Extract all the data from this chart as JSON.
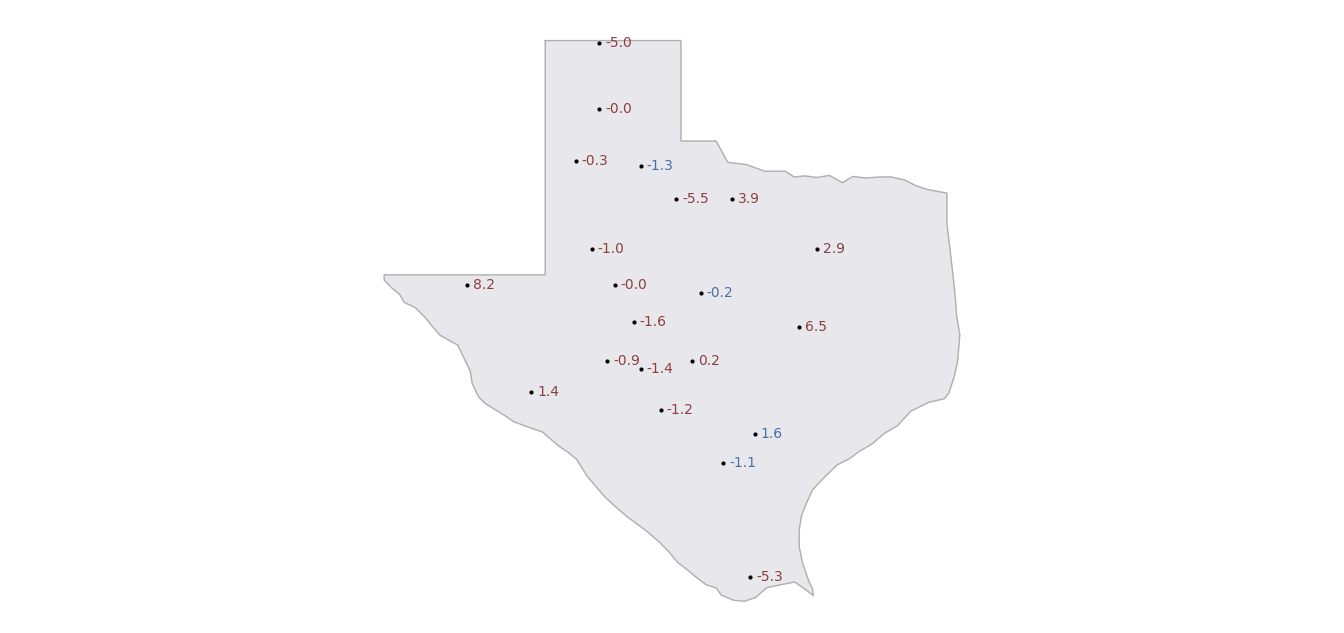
{
  "background_color": "#ffffff",
  "map_fill_color": "#e8e8ec",
  "map_edge_color": "#b0b0b0",
  "map_edge_width": 1.0,
  "label_fontsize": 10,
  "dot_size": 4,
  "points": [
    {
      "lon": -101.83,
      "lat": 36.45,
      "value": -5.0,
      "color": "#8b4040"
    },
    {
      "lon": -101.83,
      "lat": 35.18,
      "value": -0.0,
      "color": "#8b4040"
    },
    {
      "lon": -102.35,
      "lat": 34.18,
      "value": -0.3,
      "color": "#8b4040"
    },
    {
      "lon": -100.9,
      "lat": 34.1,
      "value": -1.3,
      "color": "#4a6fa5"
    },
    {
      "lon": -100.1,
      "lat": 33.45,
      "value": -5.5,
      "color": "#8b4040"
    },
    {
      "lon": -98.85,
      "lat": 33.45,
      "value": 3.9,
      "color": "#8b4040"
    },
    {
      "lon": -102.0,
      "lat": 32.5,
      "value": -1.0,
      "color": "#8b4040"
    },
    {
      "lon": -96.95,
      "lat": 32.5,
      "value": 2.9,
      "color": "#8b4040"
    },
    {
      "lon": -104.8,
      "lat": 31.8,
      "value": 8.2,
      "color": "#8b4040"
    },
    {
      "lon": -101.48,
      "lat": 31.8,
      "value": -0.0,
      "color": "#8b4040"
    },
    {
      "lon": -99.55,
      "lat": 31.65,
      "value": -0.2,
      "color": "#4a6fa5"
    },
    {
      "lon": -101.05,
      "lat": 31.1,
      "value": -1.6,
      "color": "#8b4040"
    },
    {
      "lon": -97.35,
      "lat": 31.0,
      "value": 6.5,
      "color": "#8b4040"
    },
    {
      "lon": -101.65,
      "lat": 30.35,
      "value": -0.9,
      "color": "#8b4040"
    },
    {
      "lon": -100.9,
      "lat": 30.2,
      "value": -1.4,
      "color": "#8b4040"
    },
    {
      "lon": -99.75,
      "lat": 30.35,
      "value": 0.2,
      "color": "#8b4040"
    },
    {
      "lon": -103.35,
      "lat": 29.75,
      "value": 1.4,
      "color": "#8b4040"
    },
    {
      "lon": -100.45,
      "lat": 29.4,
      "value": -1.2,
      "color": "#8b4040"
    },
    {
      "lon": -98.35,
      "lat": 28.95,
      "value": 1.6,
      "color": "#4a6fa5"
    },
    {
      "lon": -99.05,
      "lat": 28.38,
      "value": -1.1,
      "color": "#4a6fa5"
    },
    {
      "lon": -98.45,
      "lat": 26.2,
      "value": -5.3,
      "color": "#8b4040"
    }
  ],
  "xlim": [
    -107.2,
    -93.2
  ],
  "ylim": [
    25.2,
    37.2
  ],
  "figsize": [
    13.44,
    6.33
  ],
  "dpi": 100
}
